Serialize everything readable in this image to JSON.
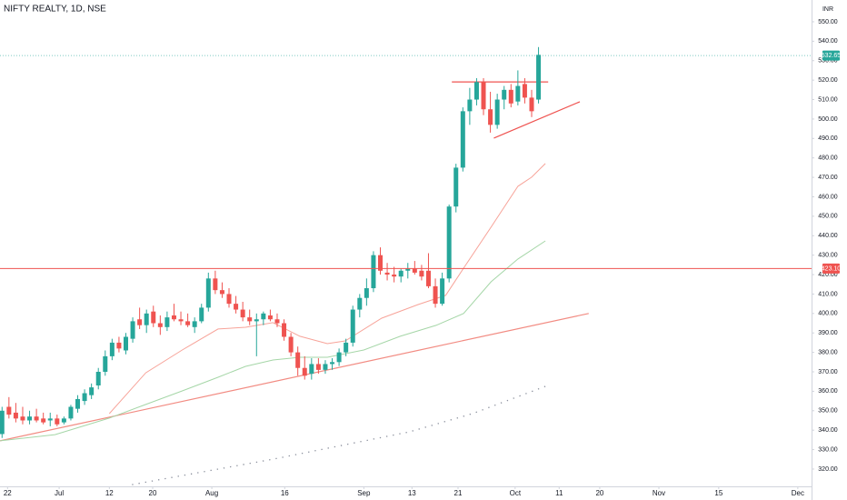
{
  "chart_data": {
    "type": "candlestick",
    "title": "NIFTY REALTY, 1D, NSE",
    "currency": "INR",
    "up_color": "#26a69a",
    "down_color": "#ef5350",
    "x": [
      0,
      1,
      2,
      3,
      4,
      5,
      6,
      7,
      8,
      9,
      10,
      11,
      12,
      13,
      14,
      15,
      16,
      17,
      18,
      19,
      20,
      21,
      22,
      23,
      24,
      25,
      26,
      27,
      28,
      29,
      30,
      31,
      32,
      33,
      34,
      35,
      36,
      37,
      38,
      39,
      40,
      41,
      42,
      43,
      44,
      45,
      46,
      47,
      48,
      49,
      50,
      51,
      52,
      53,
      54,
      55,
      56,
      57,
      58,
      59,
      60,
      61,
      62,
      63,
      64,
      65,
      66,
      67,
      68,
      69,
      70,
      71,
      72,
      73,
      74,
      75,
      76,
      77,
      78
    ],
    "open": [
      338,
      352,
      349,
      347,
      345,
      347,
      346,
      345,
      346,
      344,
      346,
      351,
      355,
      358,
      363,
      370,
      378,
      385,
      381,
      387,
      397,
      394,
      401,
      395,
      393,
      399,
      397,
      396,
      393,
      396,
      403,
      418,
      412,
      410,
      405,
      402,
      398,
      396,
      397,
      399,
      397,
      395,
      388,
      380,
      372,
      369,
      374,
      371,
      374,
      375,
      380,
      385,
      402,
      408,
      413,
      430,
      421,
      420,
      419,
      422,
      423,
      422,
      422,
      414,
      405,
      418,
      455,
      475,
      504,
      510,
      519,
      505,
      497,
      510,
      515,
      509,
      518,
      511,
      510
    ],
    "high": [
      352,
      357,
      354,
      352,
      350,
      351,
      349,
      349,
      348,
      347,
      353,
      358,
      361,
      364,
      372,
      381,
      387,
      388,
      390,
      398,
      403,
      402,
      404,
      399,
      401,
      405,
      401,
      400,
      398,
      405,
      421,
      422,
      416,
      413,
      409,
      406,
      402,
      400,
      401,
      402,
      400,
      397,
      390,
      383,
      378,
      377,
      377,
      376,
      377,
      382,
      387,
      404,
      410,
      418,
      432,
      434,
      426,
      424,
      423,
      426,
      427,
      425,
      431,
      418,
      421,
      456,
      477,
      506,
      516,
      521,
      521,
      514,
      513,
      517,
      518,
      525,
      521,
      515,
      537
    ],
    "low": [
      336,
      346,
      344,
      343,
      343,
      344,
      343,
      342,
      342,
      343,
      345,
      349,
      353,
      356,
      361,
      368,
      376,
      380,
      379,
      385,
      392,
      390,
      393,
      389,
      391,
      396,
      394,
      393,
      390,
      395,
      401,
      410,
      408,
      403,
      400,
      396,
      394,
      378,
      394,
      396,
      393,
      386,
      378,
      368,
      366,
      366,
      369,
      369,
      371,
      373,
      378,
      383,
      398,
      404,
      411,
      420,
      417,
      416,
      416,
      418,
      420,
      417,
      413,
      403,
      404,
      416,
      452,
      473,
      497,
      507,
      502,
      493,
      495,
      505,
      506,
      507,
      508,
      501,
      508
    ],
    "close": [
      350,
      348,
      346,
      345,
      347,
      345,
      344,
      346,
      343,
      346,
      352,
      356,
      359,
      362,
      370,
      378,
      385,
      382,
      388,
      396,
      394,
      400,
      395,
      393,
      398,
      397,
      396,
      394,
      396,
      403,
      418,
      412,
      410,
      405,
      402,
      398,
      396,
      397,
      400,
      397,
      395,
      388,
      380,
      372,
      368,
      374,
      371,
      374,
      375,
      380,
      385,
      402,
      408,
      413,
      430,
      422,
      420,
      419,
      422,
      423,
      421,
      419,
      414,
      405,
      418,
      455,
      475,
      504,
      510,
      519,
      505,
      497,
      510,
      515,
      508,
      517,
      511,
      504,
      533
    ],
    "lines": [
      {
        "color": "#f7a399",
        "dashed": false,
        "x": [
          15.6,
          20.9,
          26.2,
          31.4,
          35.4,
          39.4,
          43.3,
          47.3,
          49.9,
          55.2,
          60.5,
          64.5,
          67.1,
          71.1,
          75.0,
          77.0,
          79.0
        ],
        "values": [
          348.5,
          369.5,
          381.2,
          392.0,
          392.9,
          395.3,
          388.3,
          384.5,
          385.9,
          397.6,
          404.6,
          409.3,
          423.3,
          444.4,
          465.4,
          470.1,
          477.1
        ]
      },
      {
        "color": "#a5d6a7",
        "dashed": false,
        "x": [
          -0.3,
          7.7,
          15.6,
          20.9,
          26.2,
          31.4,
          35.4,
          39.4,
          43.3,
          47.3,
          52.6,
          57.9,
          63.1,
          67.1,
          71.1,
          75.0,
          79.0
        ],
        "values": [
          334.5,
          337.7,
          346.2,
          353.2,
          360.2,
          367.2,
          372.8,
          376.1,
          377.5,
          377.5,
          381.2,
          388.3,
          393.9,
          400.0,
          416.3,
          428.0,
          437.3
        ]
      },
      {
        "color": "#8a8f9c",
        "dashed": true,
        "x": [
          18.9,
          39.4,
          59.2,
          68.4,
          79.0
        ],
        "values": [
          312.0,
          325.1,
          339.1,
          348.5,
          362.5
        ]
      }
    ],
    "trendlines": [
      {
        "color": "#f28b82",
        "x": [
          -0.3,
          85.3
        ],
        "values": [
          334.5,
          400.0
        ]
      },
      {
        "color": "#ef5350",
        "x": [
          65.4,
          79.4
        ],
        "values": [
          519.1,
          519.1
        ]
      },
      {
        "color": "#ef5350",
        "x": [
          71.5,
          84.0
        ],
        "values": [
          490.2,
          508.9
        ]
      }
    ],
    "levels": [
      {
        "value": 532.65,
        "label": "532.65",
        "color": "#26a69a",
        "dashed": true
      },
      {
        "value": 423.1,
        "label": "423.10",
        "color": "#ef5350",
        "dashed": false
      }
    ],
    "xlim": [
      -0.3,
      117.7
    ],
    "xticks": [
      {
        "value": 0.8,
        "label": "22"
      },
      {
        "value": 8.3,
        "label": "Jul"
      },
      {
        "value": 15.6,
        "label": "12"
      },
      {
        "value": 21.9,
        "label": "20"
      },
      {
        "value": 30.5,
        "label": "Aug"
      },
      {
        "value": 41.1,
        "label": "16"
      },
      {
        "value": 52.6,
        "label": "Sep"
      },
      {
        "value": 59.6,
        "label": "13"
      },
      {
        "value": 66.3,
        "label": "21"
      },
      {
        "value": 74.6,
        "label": "Oct"
      },
      {
        "value": 81,
        "label": "11"
      },
      {
        "value": 86.9,
        "label": "20"
      },
      {
        "value": 95.5,
        "label": "Nov"
      },
      {
        "value": 104.2,
        "label": "15"
      },
      {
        "value": 115.7,
        "label": "Dec"
      }
    ],
    "ylim": [
      311.1,
      561.2
    ],
    "yticks": [
      {
        "value": 320,
        "label": "320.00"
      },
      {
        "value": 330,
        "label": "330.00"
      },
      {
        "value": 340,
        "label": "340.00"
      },
      {
        "value": 350,
        "label": "350.00"
      },
      {
        "value": 360,
        "label": "360.00"
      },
      {
        "value": 370,
        "label": "370.00"
      },
      {
        "value": 380,
        "label": "380.00"
      },
      {
        "value": 390,
        "label": "390.00"
      },
      {
        "value": 400,
        "label": "400.00"
      },
      {
        "value": 410,
        "label": "410.00"
      },
      {
        "value": 420,
        "label": "420.00"
      },
      {
        "value": 430,
        "label": "430.00"
      },
      {
        "value": 440,
        "label": "440.00"
      },
      {
        "value": 450,
        "label": "450.00"
      },
      {
        "value": 460,
        "label": "460.00"
      },
      {
        "value": 470,
        "label": "470.00"
      },
      {
        "value": 480,
        "label": "480.00"
      },
      {
        "value": 490,
        "label": "490.00"
      },
      {
        "value": 500,
        "label": "500.00"
      },
      {
        "value": 510,
        "label": "510.00"
      },
      {
        "value": 520,
        "label": "520.00"
      },
      {
        "value": 530,
        "label": "530.00"
      },
      {
        "value": 540,
        "label": "540.00"
      },
      {
        "value": 550,
        "label": "550.00"
      }
    ],
    "grid": false
  }
}
